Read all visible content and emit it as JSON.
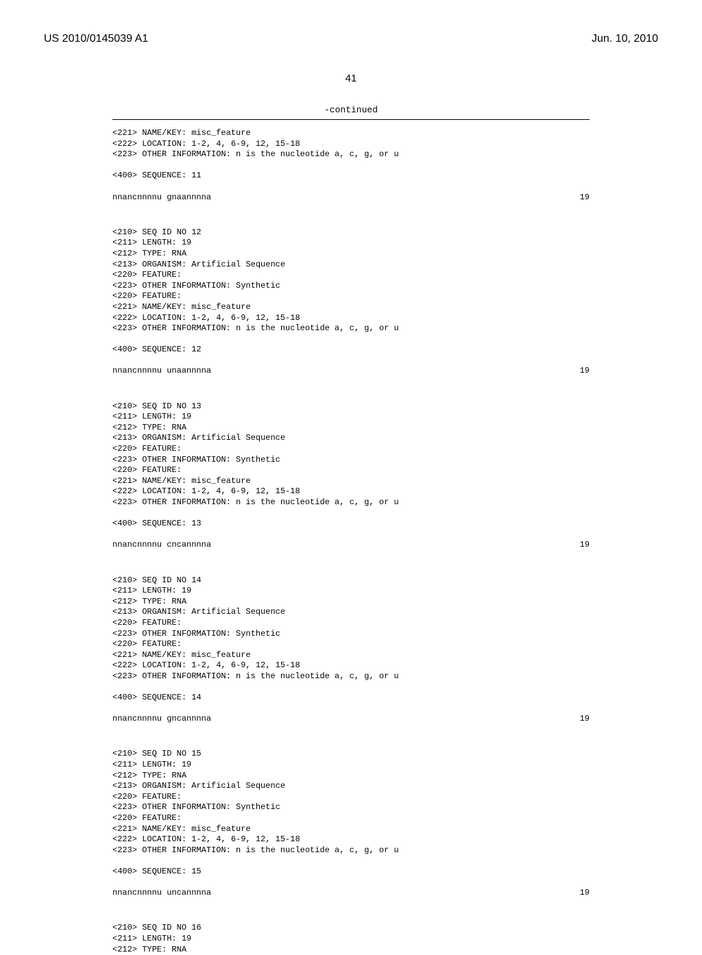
{
  "header": {
    "publication_number": "US 2010/0145039 A1",
    "publication_date": "Jun. 10, 2010"
  },
  "page_number": "41",
  "continued_label": "-continued",
  "sequences": [
    {
      "items": [
        "<221> NAME/KEY: misc_feature",
        "<222> LOCATION: 1-2, 4, 6-9, 12, 15-18",
        "<223> OTHER INFORMATION: n is the nucleotide a, c, g, or u",
        "",
        "<400> SEQUENCE: 11"
      ],
      "seq_data": "nnancnnnnu gnaannnna",
      "seq_length": "19"
    },
    {
      "items": [
        "<210> SEQ ID NO 12",
        "<211> LENGTH: 19",
        "<212> TYPE: RNA",
        "<213> ORGANISM: Artificial Sequence",
        "<220> FEATURE:",
        "<223> OTHER INFORMATION: Synthetic",
        "<220> FEATURE:",
        "<221> NAME/KEY: misc_feature",
        "<222> LOCATION: 1-2, 4, 6-9, 12, 15-18",
        "<223> OTHER INFORMATION: n is the nucleotide a, c, g, or u",
        "",
        "<400> SEQUENCE: 12"
      ],
      "seq_data": "nnancnnnnu unaannnna",
      "seq_length": "19"
    },
    {
      "items": [
        "<210> SEQ ID NO 13",
        "<211> LENGTH: 19",
        "<212> TYPE: RNA",
        "<213> ORGANISM: Artificial Sequence",
        "<220> FEATURE:",
        "<223> OTHER INFORMATION: Synthetic",
        "<220> FEATURE:",
        "<221> NAME/KEY: misc_feature",
        "<222> LOCATION: 1-2, 4, 6-9, 12, 15-18",
        "<223> OTHER INFORMATION: n is the nucleotide a, c, g, or u",
        "",
        "<400> SEQUENCE: 13"
      ],
      "seq_data": "nnancnnnnu cncannnna",
      "seq_length": "19"
    },
    {
      "items": [
        "<210> SEQ ID NO 14",
        "<211> LENGTH: 19",
        "<212> TYPE: RNA",
        "<213> ORGANISM: Artificial Sequence",
        "<220> FEATURE:",
        "<223> OTHER INFORMATION: Synthetic",
        "<220> FEATURE:",
        "<221> NAME/KEY: misc_feature",
        "<222> LOCATION: 1-2, 4, 6-9, 12, 15-18",
        "<223> OTHER INFORMATION: n is the nucleotide a, c, g, or u",
        "",
        "<400> SEQUENCE: 14"
      ],
      "seq_data": "nnancnnnnu gncannnna",
      "seq_length": "19"
    },
    {
      "items": [
        "<210> SEQ ID NO 15",
        "<211> LENGTH: 19",
        "<212> TYPE: RNA",
        "<213> ORGANISM: Artificial Sequence",
        "<220> FEATURE:",
        "<223> OTHER INFORMATION: Synthetic",
        "<220> FEATURE:",
        "<221> NAME/KEY: misc_feature",
        "<222> LOCATION: 1-2, 4, 6-9, 12, 15-18",
        "<223> OTHER INFORMATION: n is the nucleotide a, c, g, or u",
        "",
        "<400> SEQUENCE: 15"
      ],
      "seq_data": "nnancnnnnu uncannnna",
      "seq_length": "19"
    },
    {
      "items": [
        "<210> SEQ ID NO 16",
        "<211> LENGTH: 19",
        "<212> TYPE: RNA"
      ],
      "seq_data": null,
      "seq_length": null
    }
  ]
}
